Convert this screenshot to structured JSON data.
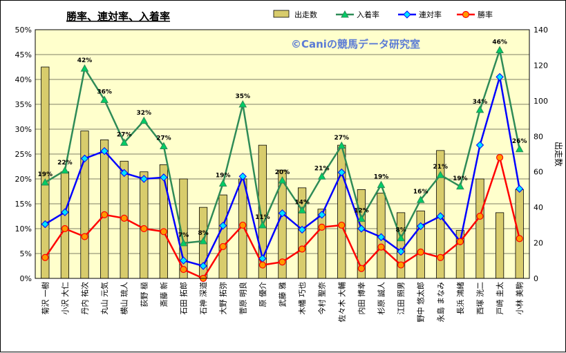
{
  "chart_data": {
    "type": "bar+line",
    "title": "勝率、連対率、入着率",
    "watermark": "©Caniの競馬データ研究室",
    "y2label": "出走数",
    "ylim": [
      0,
      50
    ],
    "y2lim": [
      0,
      140
    ],
    "y_ticks": [
      "0%",
      "5%",
      "10%",
      "15%",
      "20%",
      "25%",
      "30%",
      "35%",
      "40%",
      "45%",
      "50%"
    ],
    "y2_ticks": [
      "0",
      "20",
      "40",
      "60",
      "80",
      "100",
      "120",
      "140"
    ],
    "legend_position": "top",
    "grid": true,
    "colors": {
      "plot_bg": "#ffffcc",
      "bar": "#d8cc6c",
      "bar_edge": "#000000",
      "place": "#2e8b57",
      "rentai": "#0000ff",
      "win": "#ff0000"
    },
    "categories": [
      "菊沢 一樹",
      "小沢 大仁",
      "丹内 祐次",
      "丸山 元気",
      "横山 琉人",
      "荻野 極",
      "斎藤 新",
      "石田 拓郎",
      "石神 深道",
      "大野 拓弥",
      "菅原 明良",
      "原 優介",
      "武藤 雅",
      "木幡 巧也",
      "今村 聖奈",
      "佐々木 大輔",
      "内田 博幸",
      "杉原 誠人",
      "江田 照男",
      "野中 悠太郎",
      "永島 まなみ",
      "長浜 鴻緒",
      "西塚 洸二",
      "戸崎 圭太",
      "小林 美駒"
    ],
    "series": [
      {
        "name": "出走数",
        "type": "bar",
        "axis": "y2",
        "values": [
          119,
          60,
          83,
          78,
          66,
          60,
          64,
          56,
          40,
          47,
          56,
          75,
          61,
          51,
          39,
          75,
          50,
          48,
          37,
          38,
          72,
          27,
          56,
          37,
          50
        ]
      },
      {
        "name": "入着率",
        "type": "line",
        "marker": "triangle",
        "values": [
          19.3,
          21.7,
          42.2,
          35.9,
          27.3,
          31.7,
          26.6,
          7.1,
          7.5,
          19.1,
          35.0,
          10.7,
          19.7,
          13.7,
          20.5,
          26.7,
          12.0,
          18.8,
          8.1,
          15.8,
          20.8,
          18.5,
          33.9,
          45.9,
          26.0
        ]
      },
      {
        "name": "連対率",
        "type": "line",
        "marker": "diamond",
        "values": [
          10.9,
          13.3,
          24.1,
          25.6,
          21.2,
          20.0,
          20.3,
          3.6,
          2.5,
          10.6,
          20.5,
          4.0,
          13.1,
          9.8,
          12.8,
          21.3,
          10.0,
          8.3,
          5.4,
          10.5,
          12.5,
          7.4,
          26.8,
          40.5,
          18.0
        ]
      },
      {
        "name": "勝率",
        "type": "line",
        "marker": "circle",
        "values": [
          4.2,
          10.0,
          8.4,
          12.8,
          12.1,
          10.0,
          9.4,
          1.8,
          0.0,
          6.4,
          10.7,
          2.7,
          3.3,
          5.9,
          10.3,
          10.7,
          2.0,
          6.3,
          2.7,
          5.3,
          4.2,
          7.4,
          12.5,
          24.3,
          8.0
        ]
      }
    ],
    "place_labels": [
      "19%",
      "22%",
      "42%",
      "36%",
      "27%",
      "32%",
      "27%",
      "7%",
      "8%",
      "19%",
      "35%",
      "11%",
      "20%",
      "14%",
      "21%",
      "27%",
      "12%",
      "19%",
      "8%",
      "16%",
      "21%",
      "19%",
      "34%",
      "46%",
      "26%"
    ]
  }
}
